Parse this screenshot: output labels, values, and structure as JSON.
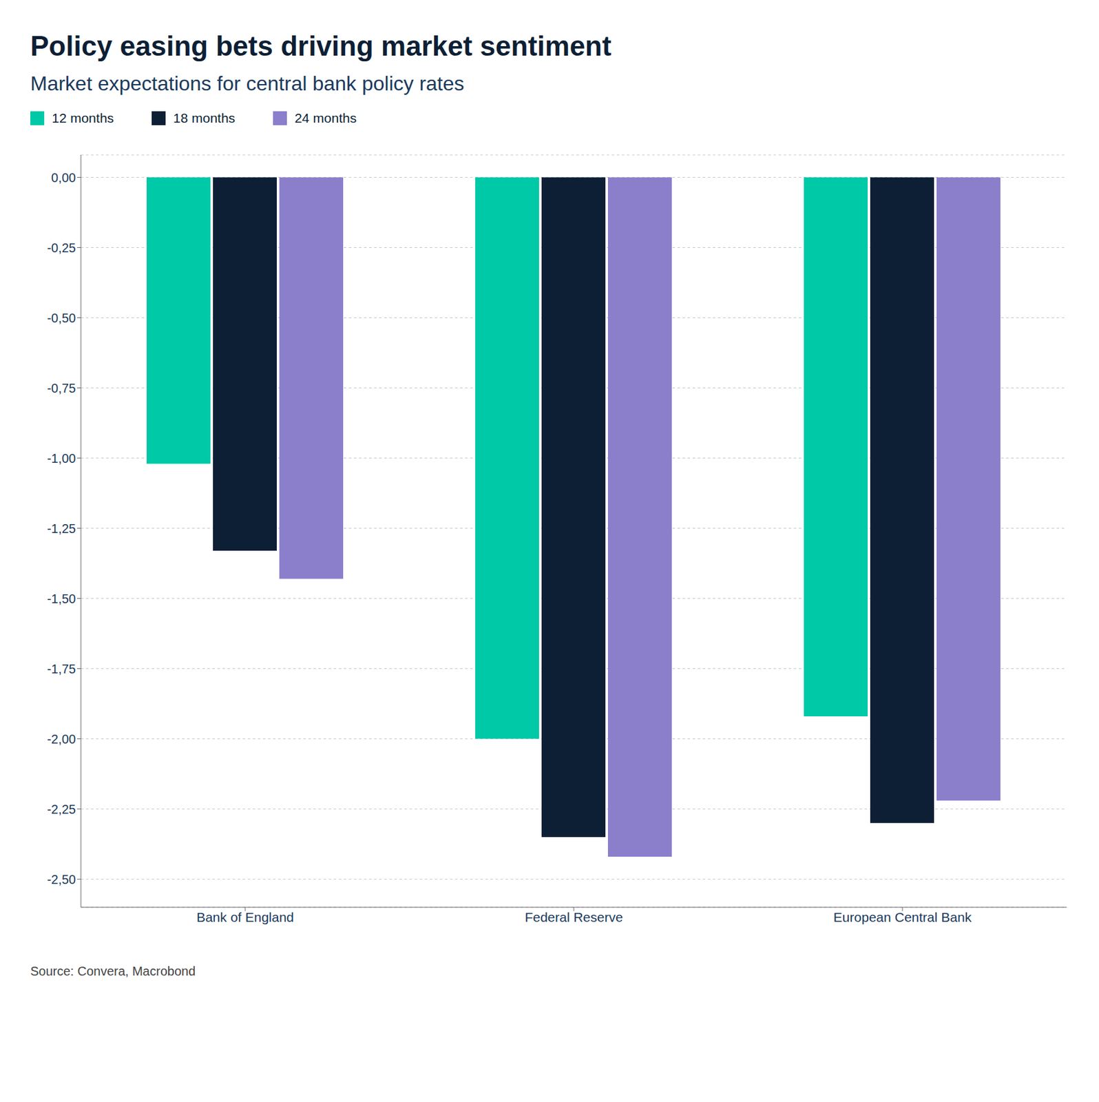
{
  "chart_data": {
    "type": "bar",
    "title": "Policy easing bets driving market sentiment",
    "subtitle": "Market expectations for central bank policy rates",
    "annotations": [
      "Source: Convera, Macrobond"
    ],
    "categories": [
      "Bank of England",
      "Federal Reserve",
      "European Central Bank"
    ],
    "series": [
      {
        "name": "12 months",
        "color": "#00C9A7",
        "values": [
          -1.02,
          -2.0,
          -1.92
        ]
      },
      {
        "name": "18 months",
        "color": "#0D1F35",
        "values": [
          -1.33,
          -2.35,
          -2.3
        ]
      },
      {
        "name": "24 months",
        "color": "#8B7FCC",
        "values": [
          -1.43,
          -2.42,
          -2.22
        ]
      }
    ],
    "ylim": [
      -2.6,
      0.08
    ],
    "yticks": [
      {
        "value": 0.0,
        "label": "0,00"
      },
      {
        "value": -0.25,
        "label": "-0,25"
      },
      {
        "value": -0.5,
        "label": "-0,50"
      },
      {
        "value": -0.75,
        "label": "-0,75"
      },
      {
        "value": -1.0,
        "label": "-1,00"
      },
      {
        "value": -1.25,
        "label": "-1,25"
      },
      {
        "value": -1.5,
        "label": "-1,50"
      },
      {
        "value": -1.75,
        "label": "-1,75"
      },
      {
        "value": -2.0,
        "label": "-2,00"
      },
      {
        "value": -2.25,
        "label": "-2,25"
      },
      {
        "value": -2.5,
        "label": "-2,50"
      }
    ],
    "grid": true,
    "legend": "top left"
  }
}
